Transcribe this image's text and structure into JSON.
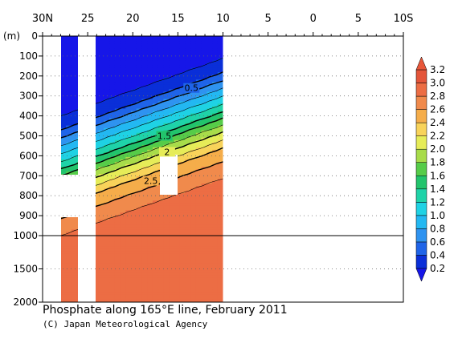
{
  "chart_data": {
    "type": "heatmap",
    "title": "Phosphate along 165°E line, February 2011",
    "credit": "(C) Japan Meteorological Agency",
    "y_unit_label": "(m)",
    "x_ticks": [
      "30N",
      "25",
      "20",
      "15",
      "10",
      "5",
      "0",
      "5",
      "10S"
    ],
    "x_range": [
      30,
      -10
    ],
    "y_ticks_upper": [
      "0",
      "100",
      "200",
      "300",
      "400",
      "500",
      "600",
      "700",
      "800",
      "900",
      "1000"
    ],
    "y_ticks_lower": [
      "1500",
      "2000"
    ],
    "y_range": [
      0,
      2000
    ],
    "colorbar": {
      "levels": [
        "0.2",
        "0.4",
        "0.6",
        "0.8",
        "1.0",
        "1.2",
        "1.4",
        "1.6",
        "1.8",
        "2.0",
        "2.2",
        "2.4",
        "2.6",
        "2.8",
        "3.0",
        "3.2"
      ],
      "colors": [
        "#0a2fd8",
        "#1f64e8",
        "#2f93f0",
        "#23b8f2",
        "#1fd2e4",
        "#1fd3a8",
        "#22c46c",
        "#56cc49",
        "#a8dc4a",
        "#e6ec58",
        "#f8d35a",
        "#f5ad4a",
        "#f08a4c",
        "#ec6d44",
        "#e4553a"
      ],
      "min_arrow_color": "#1616e8",
      "max_arrow_color": "#e8573a"
    },
    "contour_labels": [
      "0.5",
      "1.5",
      "2",
      "2.5"
    ],
    "data_coverage_lat": [
      28,
      10
    ],
    "profile": [
      {
        "depth": 0,
        "value": 0.1
      },
      {
        "depth": 100,
        "value": 0.1
      },
      {
        "depth": 200,
        "value": 0.3
      },
      {
        "depth": 300,
        "value": 0.8
      },
      {
        "depth": 400,
        "value": 1.3
      },
      {
        "depth": 500,
        "value": 1.9
      },
      {
        "depth": 600,
        "value": 2.4
      },
      {
        "depth": 700,
        "value": 2.7
      },
      {
        "depth": 800,
        "value": 2.9
      },
      {
        "depth": 1000,
        "value": 3.0
      },
      {
        "depth": 1500,
        "value": 3.0
      },
      {
        "depth": 2000,
        "value": 2.9
      }
    ]
  }
}
